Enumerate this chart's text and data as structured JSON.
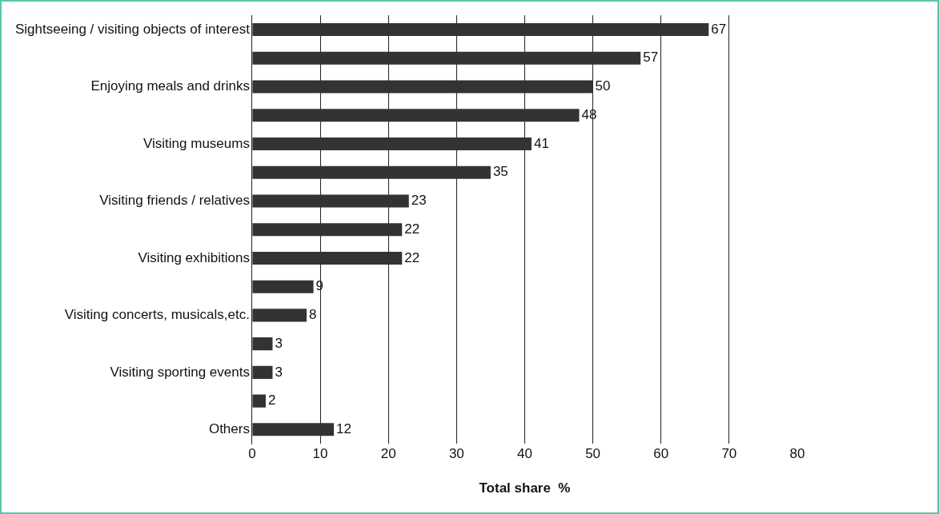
{
  "chart_data": {
    "type": "bar",
    "orientation": "horizontal",
    "xlabel": "Total share  %",
    "categories": [
      "Sightseeing / visiting objects of interest",
      null,
      "Enjoying meals and drinks",
      null,
      "Visiting museums",
      null,
      "Visiting friends / relatives",
      null,
      "Visiting exhibitions",
      null,
      "Visiting concerts, musicals,etc.",
      null,
      "Visiting sporting events",
      null,
      "Others"
    ],
    "values": [
      67,
      57,
      50,
      48,
      41,
      35,
      23,
      22,
      22,
      9,
      8,
      3,
      3,
      2,
      12
    ],
    "color": "#333333",
    "data_labels": true,
    "grid": "x",
    "legend": false,
    "xlim": [
      0,
      80
    ],
    "xticks": [
      0,
      10,
      20,
      30,
      40,
      50,
      60,
      70,
      80
    ]
  }
}
